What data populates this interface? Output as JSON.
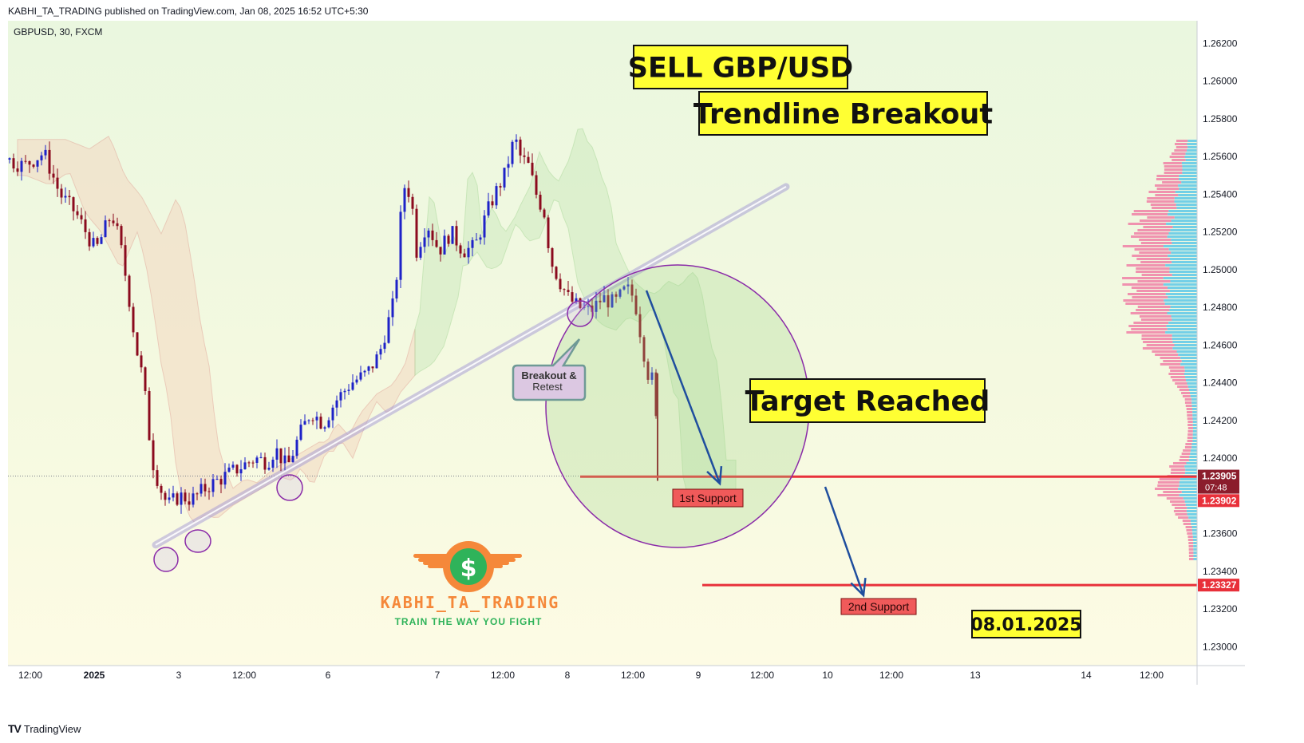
{
  "header": {
    "published_line": "KABHI_TA_TRADING published on TradingView.com, Jan 08, 2025 16:52 UTC+5:30"
  },
  "footer": {
    "brand": "TradingView"
  },
  "branding": {
    "name": "KABHI_TA_TRADING",
    "tagline": "TRAIN THE WAY YOU FIGHT",
    "symbol": "$"
  },
  "colors": {
    "bull": "#1e22c8",
    "bear": "#8b0a1e",
    "support_line": "#e8303a",
    "trendline": "#9b8fd6",
    "label_bg_yellow": "#ffff33",
    "label_red": "#f05a5a",
    "brand_orange": "#f5883a",
    "brand_green": "#2fb35a",
    "arrow_blue": "#1f4e9e",
    "circle_purple": "#8a2aa8"
  },
  "chart_data": {
    "type": "candlestick",
    "symbol_label": "GBPUSD, 30, FXCM",
    "ylim": [
      1.229,
      1.2632
    ],
    "y_ticks": [
      "1.26200",
      "1.26000",
      "1.25800",
      "1.25600",
      "1.25400",
      "1.25200",
      "1.25000",
      "1.24800",
      "1.24600",
      "1.24400",
      "1.24200",
      "1.24000",
      "1.23600",
      "1.23400",
      "1.23200",
      "1.23000"
    ],
    "x_ticks": [
      "12:00",
      "2025",
      "3",
      "12:00",
      "6",
      "7",
      "12:00",
      "8",
      "12:00",
      "9",
      "12:00",
      "10",
      "12:00",
      "13",
      "14",
      "12:00"
    ],
    "price_path": [
      [
        0,
        1.256
      ],
      [
        30,
        1.2555
      ],
      [
        55,
        1.2562
      ],
      [
        75,
        1.254
      ],
      [
        95,
        1.253
      ],
      [
        120,
        1.251
      ],
      [
        140,
        1.253
      ],
      [
        150,
        1.2515
      ],
      [
        160,
        1.249
      ],
      [
        170,
        1.246
      ],
      [
        180,
        1.244
      ],
      [
        190,
        1.24
      ],
      [
        200,
        1.2385
      ],
      [
        210,
        1.2375
      ],
      [
        225,
        1.238
      ],
      [
        240,
        1.2378
      ],
      [
        260,
        1.2385
      ],
      [
        280,
        1.239
      ],
      [
        300,
        1.2395
      ],
      [
        320,
        1.24
      ],
      [
        335,
        1.2398
      ],
      [
        345,
        1.2405
      ],
      [
        360,
        1.2395
      ],
      [
        375,
        1.2412
      ],
      [
        390,
        1.2425
      ],
      [
        405,
        1.2418
      ],
      [
        420,
        1.243
      ],
      [
        440,
        1.244
      ],
      [
        460,
        1.2445
      ],
      [
        475,
        1.2455
      ],
      [
        485,
        1.247
      ],
      [
        495,
        1.2485
      ],
      [
        505,
        1.2545
      ],
      [
        515,
        1.254
      ],
      [
        522,
        1.251
      ],
      [
        535,
        1.2525
      ],
      [
        550,
        1.251
      ],
      [
        565,
        1.252
      ],
      [
        580,
        1.251
      ],
      [
        595,
        1.2512
      ],
      [
        610,
        1.253
      ],
      [
        620,
        1.254
      ],
      [
        632,
        1.255
      ],
      [
        645,
        1.257
      ],
      [
        652,
        1.256
      ],
      [
        662,
        1.2555
      ],
      [
        672,
        1.254
      ],
      [
        682,
        1.253
      ],
      [
        690,
        1.2505
      ],
      [
        700,
        1.2495
      ],
      [
        712,
        1.2485
      ],
      [
        725,
        1.248
      ],
      [
        740,
        1.2478
      ],
      [
        755,
        1.2485
      ],
      [
        770,
        1.2482
      ],
      [
        785,
        1.249
      ],
      [
        795,
        1.2485
      ],
      [
        805,
        1.246
      ],
      [
        812,
        1.2445
      ],
      [
        820,
        1.244
      ],
      [
        825,
        1.239
      ]
    ],
    "ichimoku_cloud": "shaded band (green bullish / orange bearish)",
    "volume_profile": "horizontal profile on right edge",
    "annotations": {
      "title_box": "SELL GBP/USD",
      "subtitle_box": "Trendline Breakout",
      "target_box": "Target Reached",
      "callout": "Breakout & Retest",
      "support1_label": "1st Support",
      "support2_label": "2nd Support",
      "date_box": "08.01.2025"
    },
    "levels": {
      "support1": 1.23902,
      "support2": 1.23327,
      "last_price": 1.23905
    },
    "price_tags": {
      "last_price": "1.23905",
      "countdown": "07:48",
      "support1": "1.23902",
      "support2": "1.23327"
    },
    "trendline": [
      [
        195,
        1.2354
      ],
      [
        985,
        1.2544
      ]
    ]
  }
}
